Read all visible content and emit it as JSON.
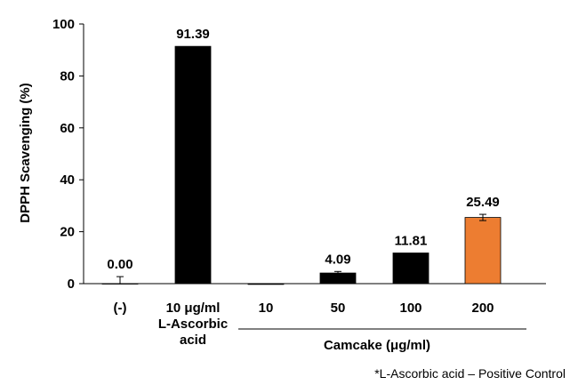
{
  "chart_data": {
    "type": "bar",
    "ylabel": "DPPH Scavenging (%)",
    "ylim": [
      0,
      100
    ],
    "yticks": [
      0,
      20,
      40,
      60,
      80,
      100
    ],
    "categories": [
      [
        "(-)"
      ],
      [
        "10 μg/ml",
        "L-Ascorbic",
        "acid"
      ],
      [
        "10"
      ],
      [
        "50"
      ],
      [
        "100"
      ],
      [
        "200"
      ]
    ],
    "values": [
      0.0,
      91.39,
      -0.3,
      4.09,
      11.81,
      25.49
    ],
    "errors": [
      2.7,
      0,
      0,
      0.6,
      0,
      1.2
    ],
    "data_labels": [
      "0.00",
      "91.39",
      "",
      "4.09",
      "11.81",
      "25.49"
    ],
    "colors": [
      "#000000",
      "#000000",
      "#000000",
      "#000000",
      "#000000",
      "#ED7D31"
    ],
    "group_label": "Camcake (μg/ml)",
    "footnote": "*L-Ascorbic acid – Positive Control",
    "grid": false,
    "legend": "none"
  }
}
